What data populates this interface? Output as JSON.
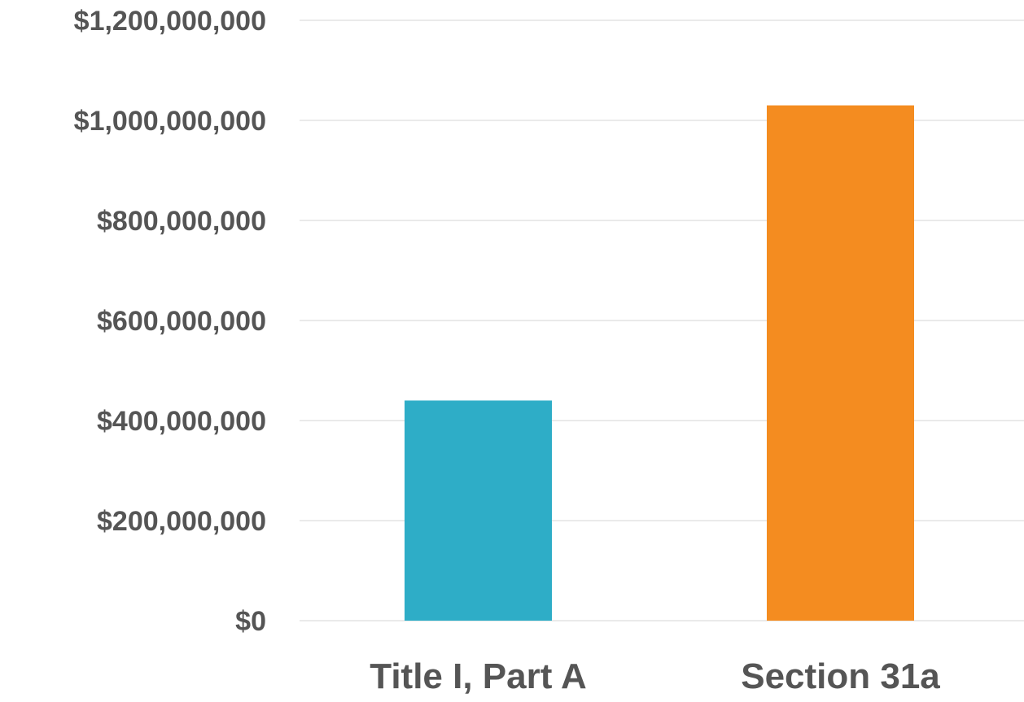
{
  "chart_data": {
    "type": "bar",
    "title": "",
    "xlabel": "",
    "ylabel": "",
    "categories": [
      "Title I, Part A",
      "Section 31a"
    ],
    "values": [
      440000000,
      1030000000
    ],
    "colors": [
      "#2eadc7",
      "#f48c20"
    ],
    "ylim": [
      0,
      1200000000
    ],
    "yticks": [
      0,
      200000000,
      400000000,
      600000000,
      800000000,
      1000000000,
      1200000000
    ],
    "ytick_labels": [
      "$0",
      "$200,000,000",
      "$400,000,000",
      "$600,000,000",
      "$800,000,000",
      "$1,000,000,000",
      "$1,200,000,000"
    ],
    "grid": true,
    "legend": "none"
  }
}
